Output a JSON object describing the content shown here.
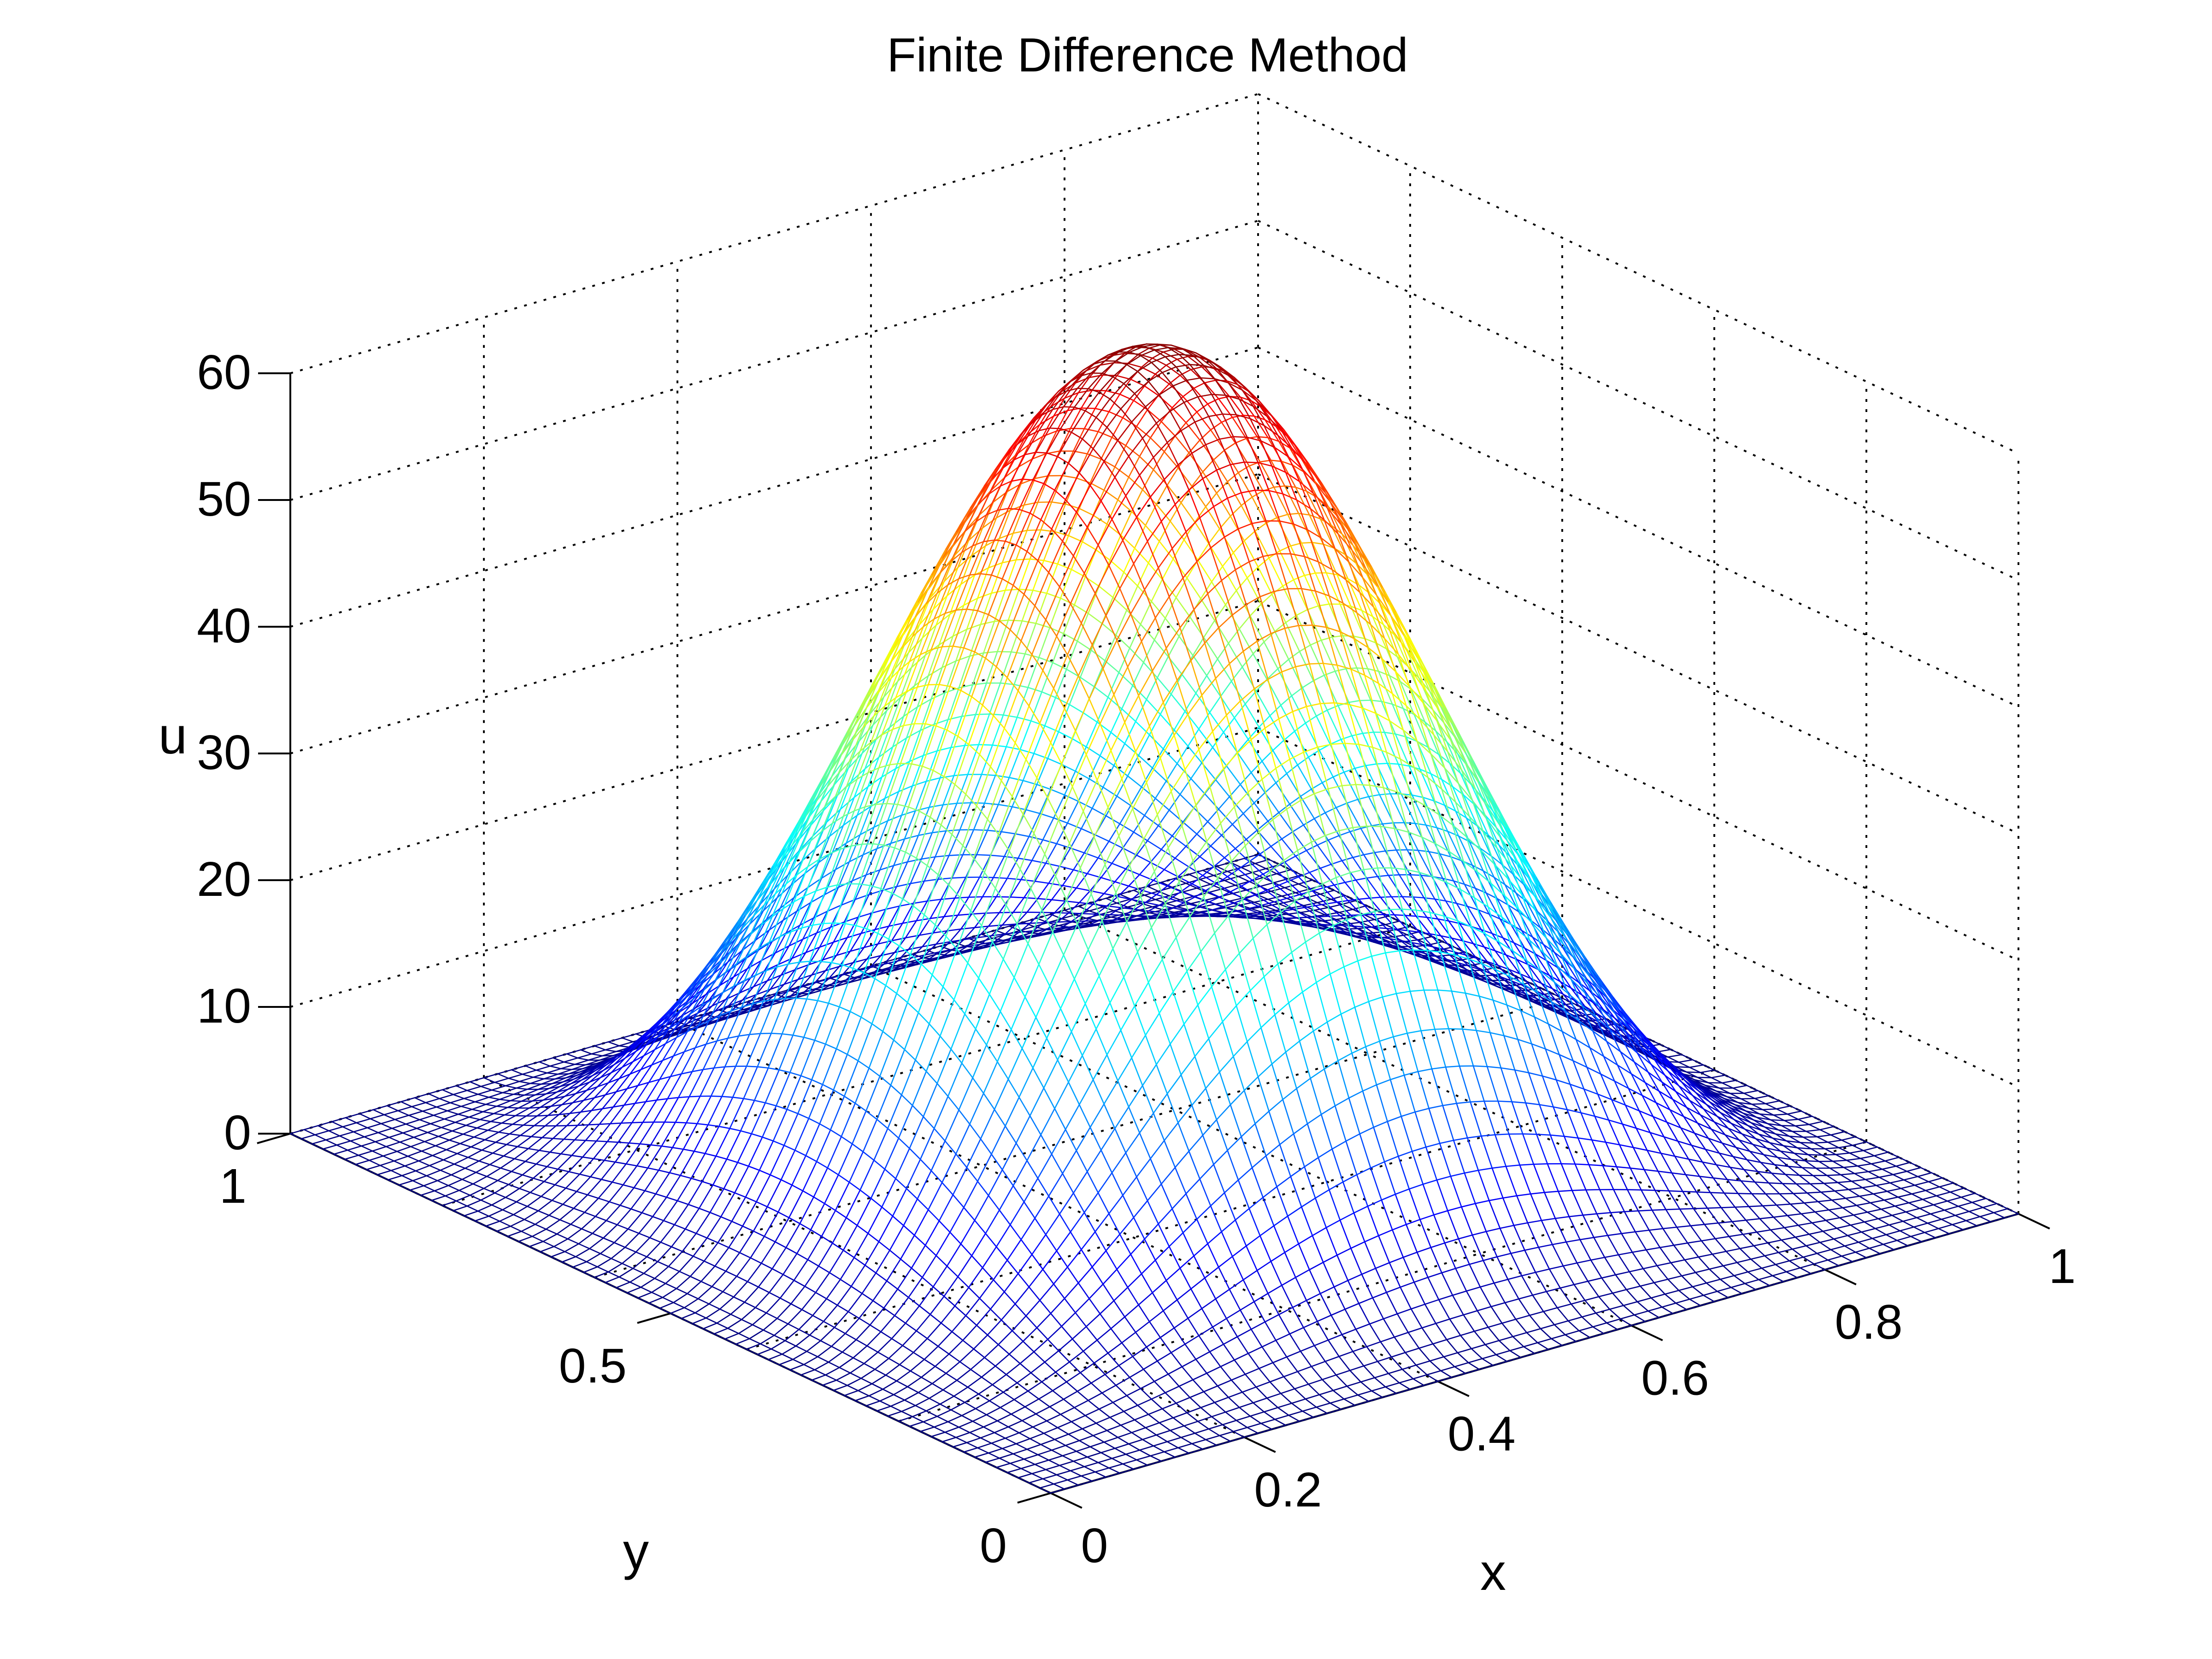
{
  "chart_data": {
    "type": "surface-mesh",
    "title": "Finite Difference Method",
    "xlabel": "x",
    "ylabel": "y",
    "zlabel": "u",
    "xlim": [
      0,
      1
    ],
    "ylim": [
      0,
      1
    ],
    "zlim": [
      0,
      60
    ],
    "x_ticks": [
      "0",
      "0.2",
      "0.4",
      "0.6",
      "0.8",
      "1"
    ],
    "y_ticks": [
      "0",
      "0.5",
      "1"
    ],
    "z_ticks": [
      "0",
      "10",
      "20",
      "30",
      "40",
      "50",
      "60"
    ],
    "grid": true,
    "colormap": "jet",
    "mesh_resolution": 71,
    "peak": {
      "x": 0.5,
      "y": 0.5,
      "u": 65
    },
    "surface_formula": "u = 65 * sin(pi*x)^2 * sin(pi*y)^2",
    "colors": {
      "axis": "#000000",
      "grid": "#000000",
      "background": "#ffffff"
    }
  }
}
